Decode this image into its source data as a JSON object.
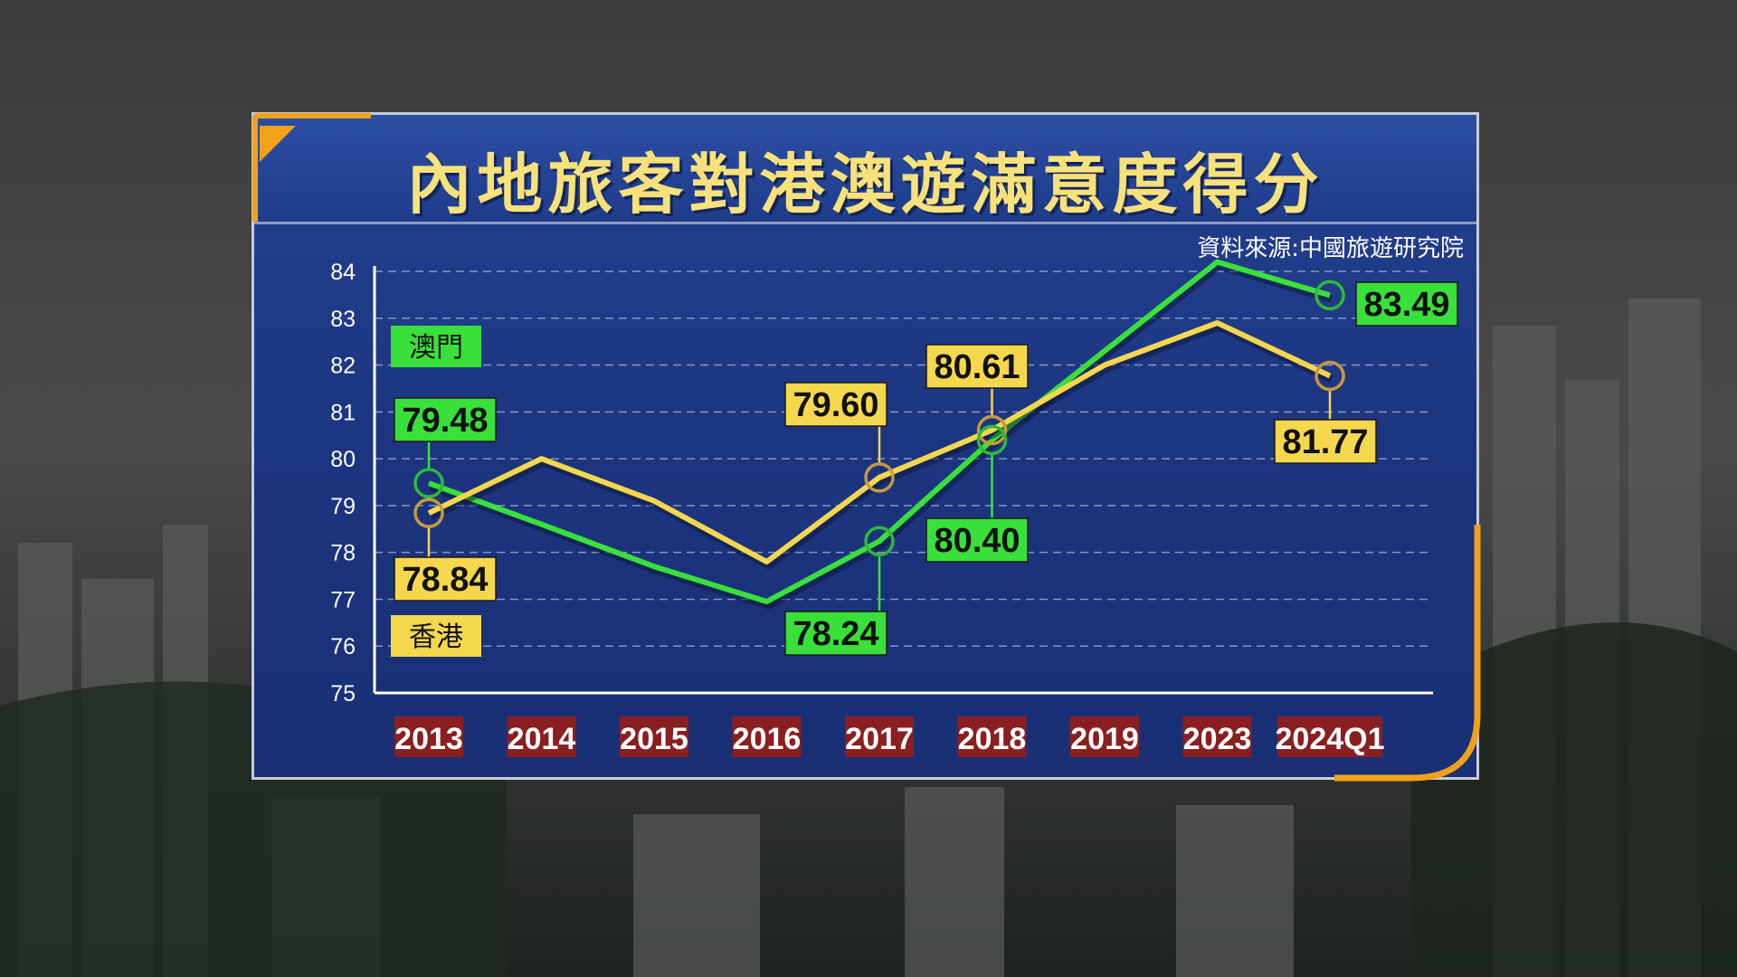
{
  "title": "內地旅客對港澳遊滿意度得分",
  "source": "資料來源:中國旅遊研究院",
  "colors": {
    "macau": "#39e03a",
    "hongkong": "#f5d74e",
    "axis_label_bg": "#8a1f1f",
    "panel": "#1f3a86",
    "accent": "#f2a11b"
  },
  "chart_data": {
    "type": "line",
    "title": "內地旅客對港澳遊滿意度得分",
    "categories": [
      "2013",
      "2014",
      "2015",
      "2016",
      "2017",
      "2018",
      "2019",
      "2023",
      "2024Q1"
    ],
    "ylim": [
      75,
      84
    ],
    "yticks": [
      75,
      76,
      77,
      78,
      79,
      80,
      81,
      82,
      83,
      84
    ],
    "grid": true,
    "series": [
      {
        "name": "澳門",
        "values": [
          79.48,
          78.6,
          77.7,
          76.95,
          78.24,
          80.4,
          82.3,
          84.2,
          83.49
        ]
      },
      {
        "name": "香港",
        "values": [
          78.84,
          80.0,
          79.1,
          77.8,
          79.6,
          80.61,
          82.0,
          82.9,
          81.77
        ]
      }
    ],
    "annotations": [
      {
        "series": "澳門",
        "category": "2013",
        "label": "79.48"
      },
      {
        "series": "香港",
        "category": "2013",
        "label": "78.84"
      },
      {
        "series": "澳門",
        "category": "2017",
        "label": "78.24"
      },
      {
        "series": "香港",
        "category": "2017",
        "label": "79.60"
      },
      {
        "series": "香港",
        "category": "2018",
        "label": "80.61"
      },
      {
        "series": "澳門",
        "category": "2018",
        "label": "80.40"
      },
      {
        "series": "澳門",
        "category": "2024Q1",
        "label": "83.49"
      },
      {
        "series": "香港",
        "category": "2024Q1",
        "label": "81.77"
      }
    ]
  }
}
